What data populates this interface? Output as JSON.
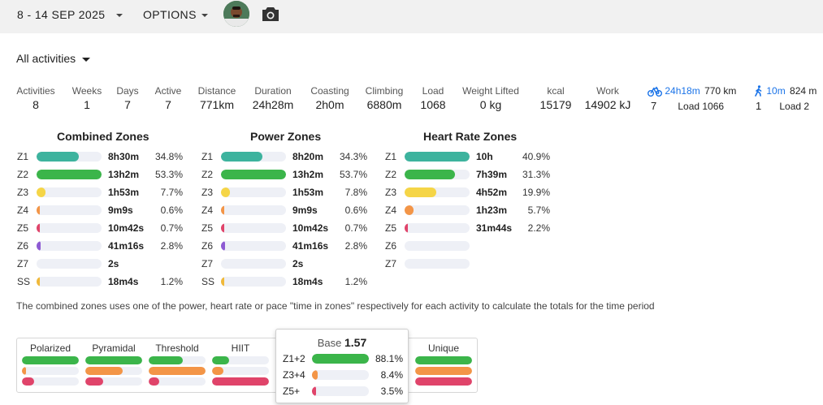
{
  "header": {
    "date_range": "8 - 14 SEP 2025",
    "options_label": "OPTIONS"
  },
  "filter": {
    "label": "All activities"
  },
  "stats": [
    {
      "label": "Activities",
      "value": "8"
    },
    {
      "label": "Weeks",
      "value": "1"
    },
    {
      "label": "Days",
      "value": "7"
    },
    {
      "label": "Active",
      "value": "7"
    },
    {
      "label": "Distance",
      "value": "771km"
    },
    {
      "label": "Duration",
      "value": "24h28m"
    },
    {
      "label": "Coasting",
      "value": "2h0m"
    },
    {
      "label": "Climbing",
      "value": "6880m"
    },
    {
      "label": "Load",
      "value": "1068"
    },
    {
      "label": "Weight Lifted",
      "value": "0 kg"
    },
    {
      "label": "kcal",
      "value": "15179"
    },
    {
      "label": "Work",
      "value": "14902 kJ"
    }
  ],
  "sports": {
    "ride": {
      "icon": "bike-icon",
      "time": "24h18m",
      "distance": "770 km",
      "count": "7",
      "load": "Load 1066"
    },
    "walk": {
      "icon": "walk-icon",
      "time": "10m",
      "distance": "824 m",
      "count": "1",
      "load": "Load 2"
    }
  },
  "zones": {
    "combined": {
      "title": "Combined Zones",
      "rows": [
        {
          "zone": "Z1",
          "time": "8h30m",
          "pct": "34.8%",
          "fill": 0.65,
          "color": "#3db39e"
        },
        {
          "zone": "Z2",
          "time": "13h2m",
          "pct": "53.3%",
          "fill": 1.0,
          "color": "#3bb54a"
        },
        {
          "zone": "Z3",
          "time": "1h53m",
          "pct": "7.7%",
          "fill": 0.14,
          "color": "#f5d547"
        },
        {
          "zone": "Z4",
          "time": "9m9s",
          "pct": "0.6%",
          "fill": 0.025,
          "color": "#f39547"
        },
        {
          "zone": "Z5",
          "time": "10m42s",
          "pct": "0.7%",
          "fill": 0.025,
          "color": "#e0446a"
        },
        {
          "zone": "Z6",
          "time": "41m16s",
          "pct": "2.8%",
          "fill": 0.06,
          "color": "#8e5bd3"
        },
        {
          "zone": "Z7",
          "time": "2s",
          "pct": "",
          "fill": 0,
          "color": "#333"
        },
        {
          "zone": "SS",
          "time": "18m4s",
          "pct": "1.2%",
          "fill": 0.03,
          "color": "#f0b93a"
        }
      ]
    },
    "power": {
      "title": "Power Zones",
      "rows": [
        {
          "zone": "Z1",
          "time": "8h20m",
          "pct": "34.3%",
          "fill": 0.64,
          "color": "#3db39e"
        },
        {
          "zone": "Z2",
          "time": "13h2m",
          "pct": "53.7%",
          "fill": 1.0,
          "color": "#3bb54a"
        },
        {
          "zone": "Z3",
          "time": "1h53m",
          "pct": "7.8%",
          "fill": 0.14,
          "color": "#f5d547"
        },
        {
          "zone": "Z4",
          "time": "9m9s",
          "pct": "0.6%",
          "fill": 0.025,
          "color": "#f39547"
        },
        {
          "zone": "Z5",
          "time": "10m42s",
          "pct": "0.7%",
          "fill": 0.025,
          "color": "#e0446a"
        },
        {
          "zone": "Z6",
          "time": "41m16s",
          "pct": "2.8%",
          "fill": 0.06,
          "color": "#8e5bd3"
        },
        {
          "zone": "Z7",
          "time": "2s",
          "pct": "",
          "fill": 0,
          "color": "#333"
        },
        {
          "zone": "SS",
          "time": "18m4s",
          "pct": "1.2%",
          "fill": 0.03,
          "color": "#f0b93a"
        }
      ]
    },
    "hr": {
      "title": "Heart Rate Zones",
      "rows": [
        {
          "zone": "Z1",
          "time": "10h",
          "pct": "40.9%",
          "fill": 1.0,
          "color": "#3db39e"
        },
        {
          "zone": "Z2",
          "time": "7h39m",
          "pct": "31.3%",
          "fill": 0.77,
          "color": "#3bb54a"
        },
        {
          "zone": "Z3",
          "time": "4h52m",
          "pct": "19.9%",
          "fill": 0.49,
          "color": "#f5d547"
        },
        {
          "zone": "Z4",
          "time": "1h23m",
          "pct": "5.7%",
          "fill": 0.14,
          "color": "#f39547"
        },
        {
          "zone": "Z5",
          "time": "31m44s",
          "pct": "2.2%",
          "fill": 0.05,
          "color": "#e0446a"
        },
        {
          "zone": "Z6",
          "time": "",
          "pct": "",
          "fill": 0,
          "color": "#8e5bd3"
        },
        {
          "zone": "Z7",
          "time": "",
          "pct": "",
          "fill": 0,
          "color": "#333"
        }
      ]
    }
  },
  "note": "The combined zones uses one of the power, heart rate or pace \"time in zones\" respectively for each activity to calculate the totals for the time period",
  "distributions": [
    {
      "name": "Polarized",
      "bars": [
        1.0,
        0.06,
        0.22
      ]
    },
    {
      "name": "Pyramidal",
      "bars": [
        1.0,
        0.66,
        0.32
      ]
    },
    {
      "name": "Threshold",
      "bars": [
        0.6,
        1.0,
        0.18
      ]
    },
    {
      "name": "HIIT",
      "bars": [
        0.3,
        0.2,
        1.0
      ]
    },
    {
      "name": "Unique",
      "bars": [
        1.0,
        1.0,
        1.0
      ]
    }
  ],
  "dist_colors": [
    "#3bb54a",
    "#f39547",
    "#e0446a"
  ],
  "base_popup": {
    "label": "Base",
    "value": "1.57",
    "rows": [
      {
        "label": "Z1+2",
        "pct": "88.1%",
        "fill": 1.0,
        "color": "#3bb54a"
      },
      {
        "label": "Z3+4",
        "pct": "8.4%",
        "fill": 0.1,
        "color": "#f39547"
      },
      {
        "label": "Z5+",
        "pct": "3.5%",
        "fill": 0.04,
        "color": "#e0446a"
      }
    ]
  }
}
